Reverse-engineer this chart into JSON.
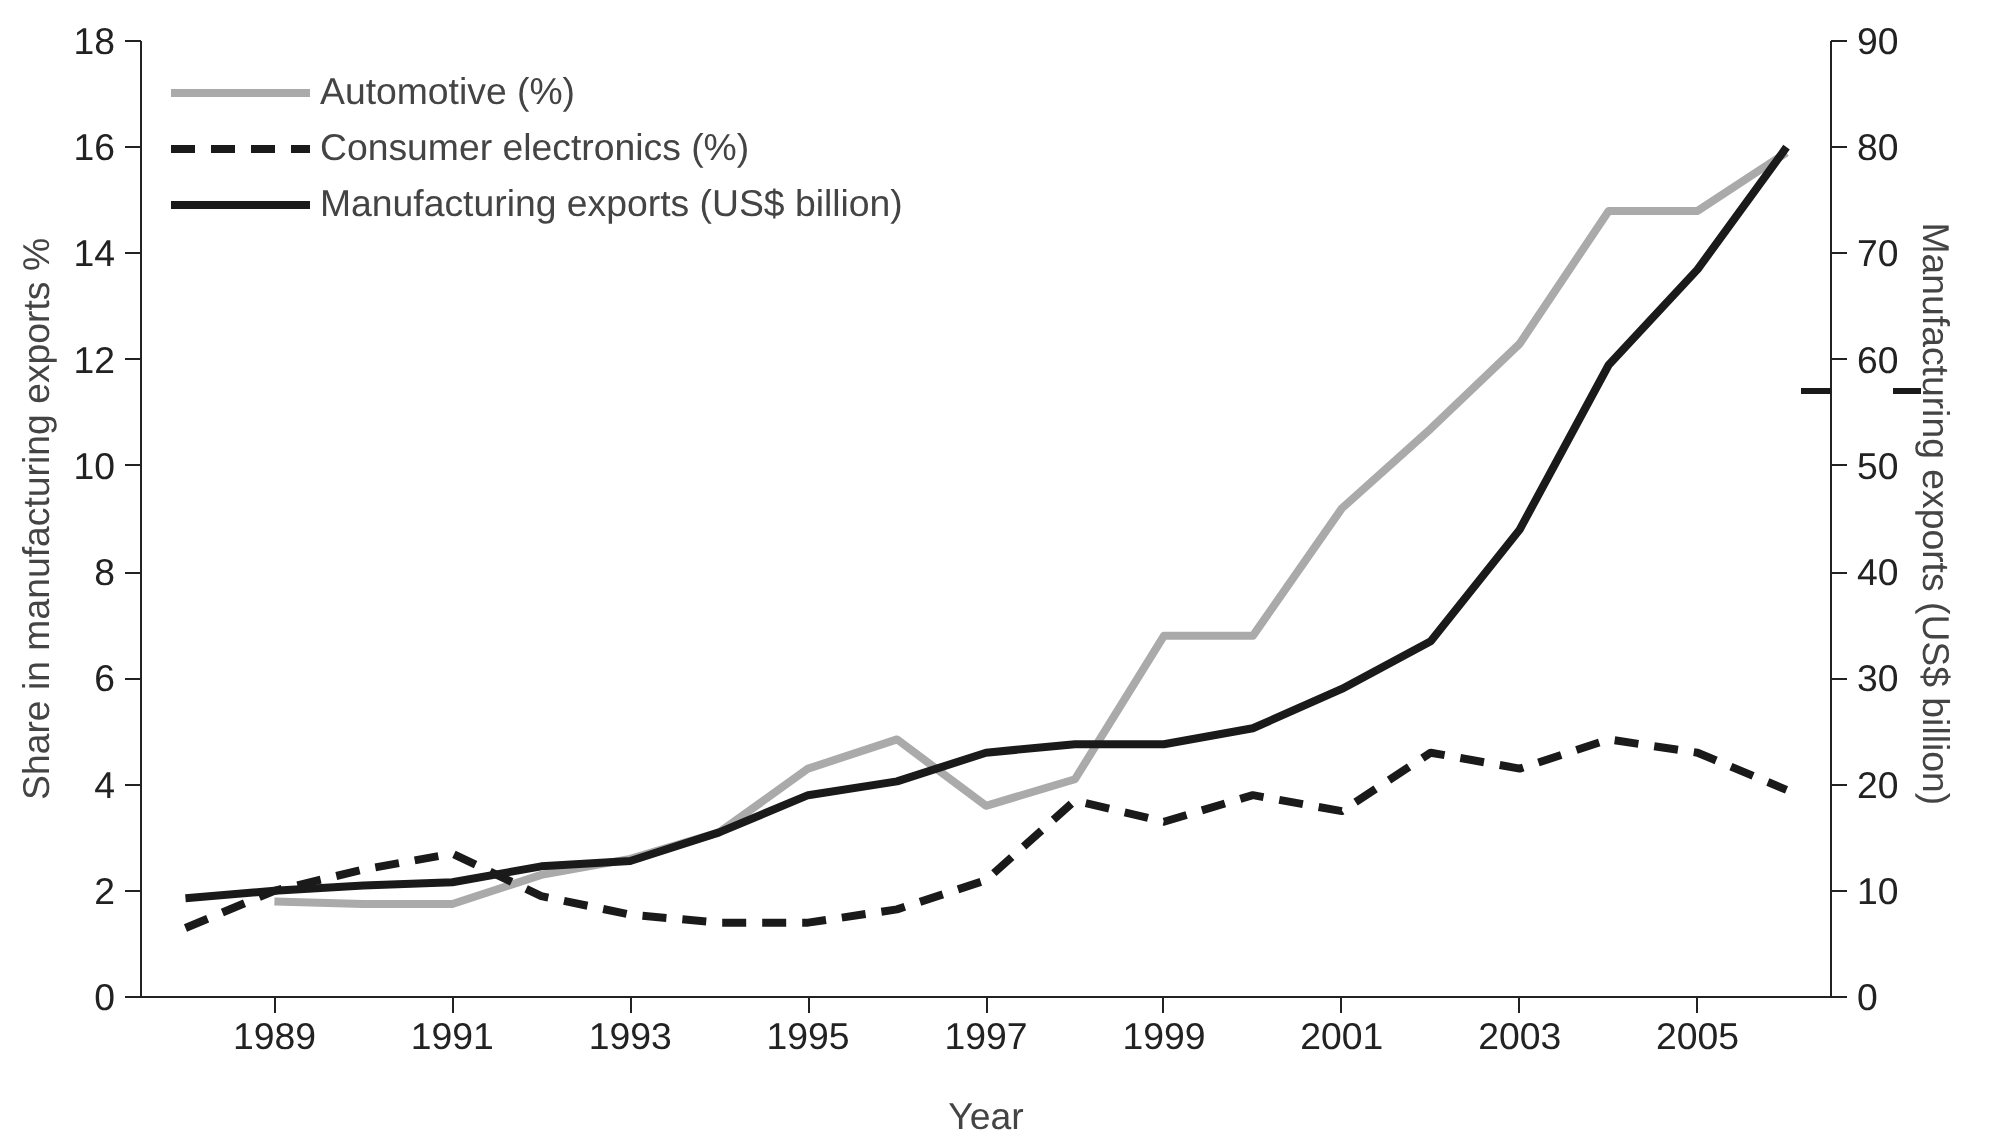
{
  "chart_data": {
    "type": "line",
    "xlabel": "Year",
    "ylabel": "Share in manufacturing exports %",
    "y2label": "Manufacturing exports  (US$ billion)",
    "x": [
      1988,
      1989,
      1990,
      1991,
      1992,
      1993,
      1994,
      1995,
      1996,
      1997,
      1998,
      1999,
      2000,
      2001,
      2002,
      2003,
      2004,
      2005,
      2006
    ],
    "series": [
      {
        "name": "Automotive (%)",
        "color": "#aaaaaa",
        "line_style": "solid",
        "values": [
          null,
          1.8,
          1.75,
          1.75,
          2.3,
          2.6,
          3.1,
          4.3,
          4.85,
          3.6,
          4.1,
          6.8,
          6.8,
          9.2,
          10.7,
          12.3,
          14.8,
          14.8,
          15.9
        ]
      },
      {
        "name": "Consumer electronics (%)",
        "color": "#1a1a1a",
        "line_style": "dashed",
        "values": [
          1.3,
          2.0,
          2.4,
          2.7,
          1.9,
          1.55,
          1.4,
          1.4,
          1.65,
          2.2,
          3.7,
          3.3,
          3.8,
          3.5,
          4.6,
          4.3,
          4.85,
          4.6,
          3.9
        ]
      },
      {
        "name": "Manufacturing exports (US$ billion)",
        "color": "#1a1a1a",
        "line_style": "solid",
        "axis": "y2",
        "values": [
          9.3,
          10,
          10.5,
          10.8,
          12.3,
          12.8,
          15.5,
          19,
          20.3,
          23,
          23.8,
          23.8,
          25.3,
          29,
          33.5,
          44,
          59.5,
          68.5,
          80
        ]
      }
    ],
    "xlim": [
      1987.5,
      2006.5
    ],
    "xticks": [
      1989,
      1991,
      1993,
      1995,
      1997,
      1999,
      2001,
      2003,
      2005
    ],
    "ylim": [
      0,
      18
    ],
    "yticks": [
      0,
      2,
      4,
      6,
      8,
      10,
      12,
      14,
      16,
      18
    ],
    "y2lim": [
      0,
      90
    ],
    "y2ticks": [
      0,
      10,
      20,
      30,
      40,
      50,
      60,
      70,
      80,
      90
    ],
    "grid": false,
    "legend": "top left",
    "marker": "none"
  }
}
